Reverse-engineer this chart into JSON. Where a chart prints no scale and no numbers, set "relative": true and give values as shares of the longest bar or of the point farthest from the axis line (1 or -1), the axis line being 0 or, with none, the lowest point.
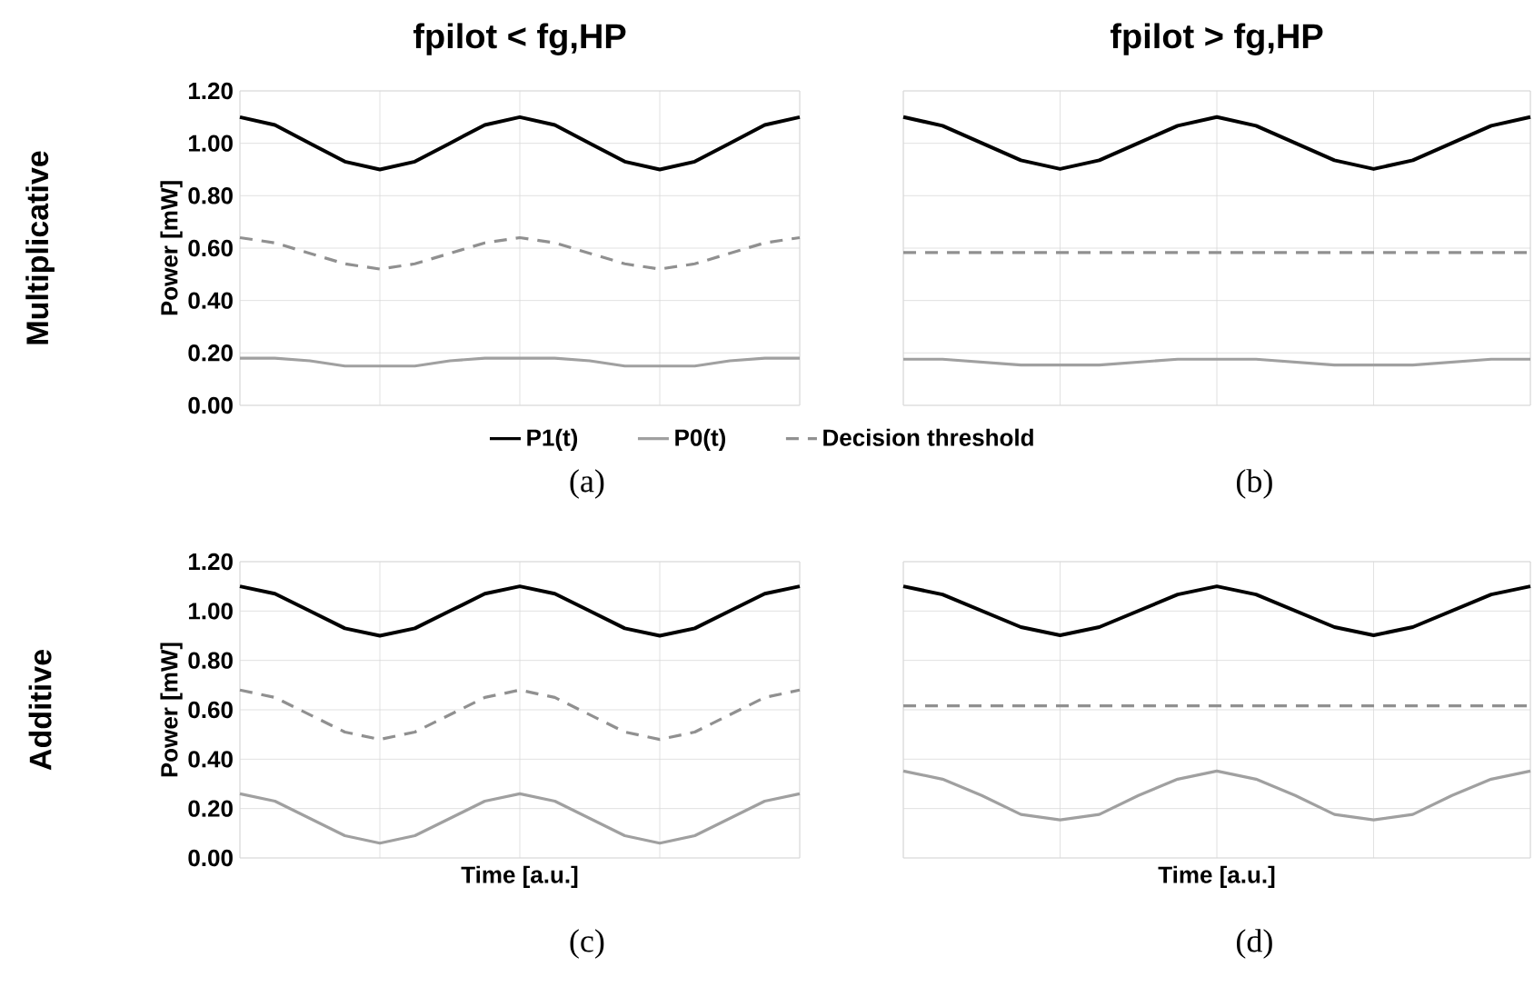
{
  "chart_data": [
    {
      "type": "line",
      "title": "fpilot < fg,HP",
      "ylabel": "Power [mW]",
      "annotations": [
        "Multiplicative",
        "(a)"
      ],
      "categories": [
        null,
        null,
        null,
        null,
        null,
        null,
        null,
        null,
        null,
        null,
        null,
        null,
        null,
        null,
        null,
        null,
        null
      ],
      "series": [
        {
          "name": "P1(t)",
          "color": "#000000",
          "line_style": "solid",
          "values": [
            1.1,
            1.07,
            1.0,
            0.93,
            0.9,
            0.93,
            1.0,
            1.07,
            1.1,
            1.07,
            1.0,
            0.93,
            0.9,
            0.93,
            1.0,
            1.07,
            1.1
          ]
        },
        {
          "name": "P0(t)",
          "color": "#a0a0a0",
          "line_style": "solid",
          "values": [
            0.18,
            0.18,
            0.17,
            0.15,
            0.15,
            0.15,
            0.17,
            0.18,
            0.18,
            0.18,
            0.17,
            0.15,
            0.15,
            0.15,
            0.17,
            0.18,
            0.18
          ]
        },
        {
          "name": "Decision threshold",
          "color": "#909090",
          "line_style": "dashed",
          "values": [
            0.64,
            0.62,
            0.58,
            0.54,
            0.52,
            0.54,
            0.58,
            0.62,
            0.64,
            0.62,
            0.58,
            0.54,
            0.52,
            0.54,
            0.58,
            0.62,
            0.64
          ]
        }
      ],
      "ylim": [
        0,
        1.2
      ],
      "yticks": [
        {
          "value": 0,
          "label": "0.00"
        },
        {
          "value": 0.2,
          "label": "0.20"
        },
        {
          "value": 0.4,
          "label": "0.40"
        },
        {
          "value": 0.6,
          "label": "0.60"
        },
        {
          "value": 0.8,
          "label": "0.80"
        },
        {
          "value": 1.0,
          "label": "1.00"
        },
        {
          "value": 1.2,
          "label": "1.20"
        }
      ],
      "grid": true,
      "legend": "bottom",
      "tick_labels": "y"
    },
    {
      "type": "line",
      "title": "fpilot > fg,HP",
      "annotations": [
        "(b)"
      ],
      "relative": true,
      "categories": [
        null,
        null,
        null,
        null,
        null,
        null,
        null,
        null,
        null,
        null,
        null,
        null,
        null,
        null,
        null,
        null,
        null
      ],
      "series": [
        {
          "color": "#000000",
          "line_style": "solid",
          "values": [
            1.0,
            0.97,
            0.91,
            0.85,
            0.82,
            0.85,
            0.91,
            0.97,
            1.0,
            0.97,
            0.91,
            0.85,
            0.82,
            0.85,
            0.91,
            0.97,
            1.0
          ]
        },
        {
          "color": "#a0a0a0",
          "line_style": "solid",
          "values": [
            0.16,
            0.16,
            0.15,
            0.14,
            0.14,
            0.14,
            0.15,
            0.16,
            0.16,
            0.16,
            0.15,
            0.14,
            0.14,
            0.14,
            0.15,
            0.16,
            0.16
          ]
        },
        {
          "color": "#909090",
          "line_style": "dashed",
          "values": [
            0.53,
            0.53,
            0.53,
            0.53,
            0.53,
            0.53,
            0.53,
            0.53,
            0.53,
            0.53,
            0.53,
            0.53,
            0.53,
            0.53,
            0.53,
            0.53,
            0.53
          ]
        }
      ],
      "grid": true,
      "tick_labels": false
    },
    {
      "type": "line",
      "xlabel": "Time [a.u.]",
      "ylabel": "Power [mW]",
      "annotations": [
        "Additive",
        "(c)"
      ],
      "categories": [
        null,
        null,
        null,
        null,
        null,
        null,
        null,
        null,
        null,
        null,
        null,
        null,
        null,
        null,
        null,
        null,
        null
      ],
      "series": [
        {
          "color": "#000000",
          "line_style": "solid",
          "values": [
            1.1,
            1.07,
            1.0,
            0.93,
            0.9,
            0.93,
            1.0,
            1.07,
            1.1,
            1.07,
            1.0,
            0.93,
            0.9,
            0.93,
            1.0,
            1.07,
            1.1
          ]
        },
        {
          "color": "#a0a0a0",
          "line_style": "solid",
          "values": [
            0.26,
            0.23,
            0.16,
            0.09,
            0.06,
            0.09,
            0.16,
            0.23,
            0.26,
            0.23,
            0.16,
            0.09,
            0.06,
            0.09,
            0.16,
            0.23,
            0.26
          ]
        },
        {
          "color": "#909090",
          "line_style": "dashed",
          "values": [
            0.68,
            0.65,
            0.58,
            0.51,
            0.48,
            0.51,
            0.58,
            0.65,
            0.68,
            0.65,
            0.58,
            0.51,
            0.48,
            0.51,
            0.58,
            0.65,
            0.68
          ]
        }
      ],
      "ylim": [
        0,
        1.2
      ],
      "yticks": [
        {
          "value": 0,
          "label": "0.00"
        },
        {
          "value": 0.2,
          "label": "0.20"
        },
        {
          "value": 0.4,
          "label": "0.40"
        },
        {
          "value": 0.6,
          "label": "0.60"
        },
        {
          "value": 0.8,
          "label": "0.80"
        },
        {
          "value": 1.0,
          "label": "1.00"
        },
        {
          "value": 1.2,
          "label": "1.20"
        }
      ],
      "grid": true,
      "tick_labels": "y"
    },
    {
      "type": "line",
      "xlabel": "Time [a.u.]",
      "annotations": [
        "(d)"
      ],
      "relative": true,
      "categories": [
        null,
        null,
        null,
        null,
        null,
        null,
        null,
        null,
        null,
        null,
        null,
        null,
        null,
        null,
        null,
        null,
        null
      ],
      "series": [
        {
          "color": "#000000",
          "line_style": "solid",
          "values": [
            1.0,
            0.97,
            0.91,
            0.85,
            0.82,
            0.85,
            0.91,
            0.97,
            1.0,
            0.97,
            0.91,
            0.85,
            0.82,
            0.85,
            0.91,
            0.97,
            1.0
          ]
        },
        {
          "color": "#a0a0a0",
          "line_style": "solid",
          "values": [
            0.32,
            0.29,
            0.23,
            0.16,
            0.14,
            0.16,
            0.23,
            0.29,
            0.32,
            0.29,
            0.23,
            0.16,
            0.14,
            0.16,
            0.23,
            0.29,
            0.32
          ]
        },
        {
          "color": "#909090",
          "line_style": "dashed",
          "values": [
            0.56,
            0.56,
            0.56,
            0.56,
            0.56,
            0.56,
            0.56,
            0.56,
            0.56,
            0.56,
            0.56,
            0.56,
            0.56,
            0.56,
            0.56,
            0.56,
            0.56
          ]
        }
      ],
      "grid": true,
      "tick_labels": false
    }
  ]
}
